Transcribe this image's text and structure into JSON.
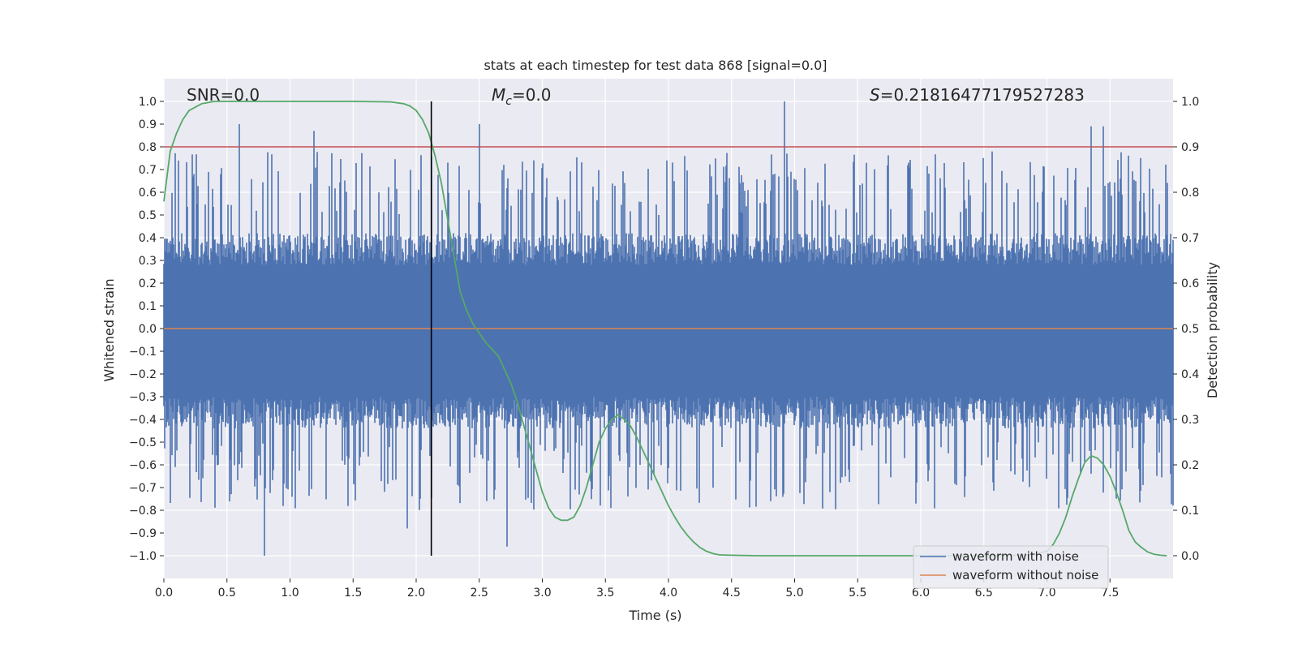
{
  "chart_data": {
    "type": "line",
    "title": "stats at each timestep for test data 868 [signal=0.0]",
    "xlabel": "Time (s)",
    "ylabel_left": "Whitened strain",
    "ylabel_right": "Detection probability",
    "xlim": [
      0.0,
      8.0
    ],
    "ylim_left": [
      -1.1,
      1.1
    ],
    "ylim_right": [
      -0.05,
      1.05
    ],
    "x_ticks": [
      0.0,
      0.5,
      1.0,
      1.5,
      2.0,
      2.5,
      3.0,
      3.5,
      4.0,
      4.5,
      5.0,
      5.5,
      6.0,
      6.5,
      7.0,
      7.5
    ],
    "x_tick_labels": [
      "0.0",
      "0.5",
      "1.0",
      "1.5",
      "2.0",
      "2.5",
      "3.0",
      "3.5",
      "4.0",
      "4.5",
      "5.0",
      "5.5",
      "6.0",
      "6.5",
      "7.0",
      "7.5"
    ],
    "y_left_ticks": [
      1.0,
      0.9,
      0.8,
      0.7,
      0.6,
      0.5,
      0.4,
      0.3,
      0.2,
      0.1,
      0.0,
      -0.1,
      -0.2,
      -0.3,
      -0.4,
      -0.5,
      -0.6,
      -0.7,
      -0.8,
      -0.9,
      -1.0
    ],
    "y_left_tick_labels": [
      "1.0",
      "0.9",
      "0.8",
      "0.7",
      "0.6",
      "0.5",
      "0.4",
      "0.3",
      "0.2",
      "0.1",
      "0.0",
      "−0.1",
      "−0.2",
      "−0.3",
      "−0.4",
      "−0.5",
      "−0.6",
      "−0.7",
      "−0.8",
      "−0.9",
      "−1.0"
    ],
    "y_right_ticks": [
      1.0,
      0.9,
      0.8,
      0.7,
      0.6,
      0.5,
      0.4,
      0.3,
      0.2,
      0.1,
      0.0
    ],
    "y_right_tick_labels": [
      "1.0",
      "0.9",
      "0.8",
      "0.7",
      "0.6",
      "0.5",
      "0.4",
      "0.3",
      "0.2",
      "0.1",
      "0.0"
    ],
    "annotations": {
      "snr": "SNR=0.0",
      "mc_symbol": "M",
      "mc_sub": "c",
      "mc_value": "=0.0",
      "s_symbol": "S",
      "s_value": "=0.21816477179527283"
    },
    "threshold_right": 0.9,
    "vline_x": 2.12,
    "vline_ylim_left": [
      -1.0,
      1.0
    ],
    "series": [
      {
        "name": "waveform with noise",
        "color": "#4c72b0",
        "axis": "left",
        "kind": "noise",
        "envelope_typical": 0.4,
        "peak_times": [
          0.6,
          1.19,
          2.5,
          4.92,
          7.35,
          7.45
        ],
        "peak_values": [
          0.9,
          0.87,
          0.9,
          1.0,
          0.89,
          0.89
        ],
        "trough_times": [
          0.8,
          1.93,
          2.72
        ],
        "trough_values": [
          -1.0,
          -0.88,
          -0.96
        ]
      },
      {
        "name": "waveform without noise",
        "color": "#dd8452",
        "axis": "left",
        "kind": "flat",
        "value": 0.0
      },
      {
        "name": "detection probability",
        "color": "#55a868",
        "axis": "right",
        "x": [
          0.0,
          0.05,
          0.1,
          0.15,
          0.2,
          0.3,
          0.4,
          0.5,
          1.0,
          1.5,
          1.8,
          1.9,
          1.95,
          2.0,
          2.05,
          2.1,
          2.15,
          2.2,
          2.25,
          2.3,
          2.35,
          2.4,
          2.45,
          2.5,
          2.55,
          2.6,
          2.65,
          2.7,
          2.75,
          2.8,
          2.85,
          2.9,
          2.95,
          3.0,
          3.05,
          3.1,
          3.15,
          3.2,
          3.25,
          3.3,
          3.35,
          3.4,
          3.45,
          3.5,
          3.55,
          3.6,
          3.65,
          3.7,
          3.75,
          3.8,
          3.85,
          3.9,
          3.95,
          4.0,
          4.05,
          4.1,
          4.15,
          4.2,
          4.25,
          4.3,
          4.35,
          4.4,
          4.5,
          4.7,
          5.0,
          6.0,
          6.5,
          6.8,
          6.9,
          7.0,
          7.05,
          7.1,
          7.15,
          7.2,
          7.25,
          7.3,
          7.35,
          7.4,
          7.45,
          7.5,
          7.55,
          7.6,
          7.65,
          7.7,
          7.75,
          7.8,
          7.85,
          7.9,
          7.95
        ],
        "y": [
          0.78,
          0.89,
          0.93,
          0.96,
          0.98,
          0.995,
          1.0,
          1.0,
          1.0,
          1.0,
          0.999,
          0.995,
          0.99,
          0.98,
          0.96,
          0.93,
          0.88,
          0.82,
          0.74,
          0.66,
          0.58,
          0.54,
          0.51,
          0.49,
          0.47,
          0.455,
          0.44,
          0.41,
          0.38,
          0.34,
          0.29,
          0.24,
          0.19,
          0.14,
          0.105,
          0.085,
          0.078,
          0.078,
          0.085,
          0.11,
          0.15,
          0.2,
          0.25,
          0.28,
          0.3,
          0.31,
          0.3,
          0.285,
          0.26,
          0.23,
          0.2,
          0.17,
          0.14,
          0.11,
          0.085,
          0.063,
          0.045,
          0.03,
          0.018,
          0.01,
          0.005,
          0.002,
          0.001,
          0.0,
          0.0,
          0.0,
          0.0,
          0.001,
          0.003,
          0.01,
          0.025,
          0.05,
          0.085,
          0.13,
          0.17,
          0.205,
          0.22,
          0.215,
          0.2,
          0.175,
          0.14,
          0.1,
          0.055,
          0.03,
          0.018,
          0.008,
          0.003,
          0.001,
          0.0
        ]
      }
    ],
    "legend": {
      "location": "lower-right",
      "entries": [
        "waveform with noise",
        "waveform without noise"
      ]
    },
    "colors": {
      "background": "#eaeaf2",
      "grid": "#ffffff",
      "threshold": "#c44e52",
      "vline": "#000000",
      "text": "#262626"
    }
  }
}
